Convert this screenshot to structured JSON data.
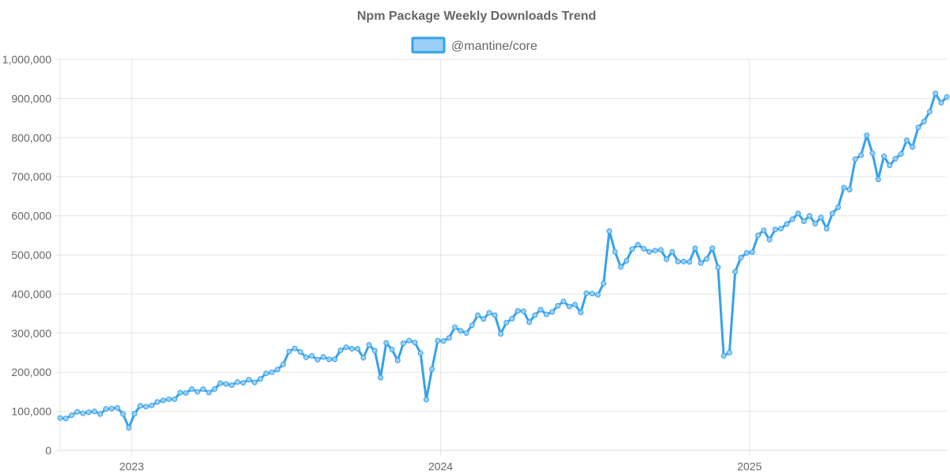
{
  "chart_data": {
    "type": "line",
    "title": "Npm Package Weekly Downloads Trend",
    "xlabel": "",
    "ylabel": "",
    "x_tick_labels": [
      "2023",
      "2024",
      "2025"
    ],
    "x_tick_weeks": [
      12.5,
      66.5,
      120.5
    ],
    "ylim": [
      0,
      1000000
    ],
    "y_ticks": [
      0,
      100000,
      200000,
      300000,
      400000,
      500000,
      600000,
      700000,
      800000,
      900000,
      1000000
    ],
    "y_tick_labels": [
      "0",
      "100,000",
      "200,000",
      "300,000",
      "400,000",
      "500,000",
      "600,000",
      "700,000",
      "800,000",
      "900,000",
      "1,000,000"
    ],
    "grid": true,
    "legend": "top-center",
    "series": [
      {
        "name": "@mantine/core",
        "color": "#36a2eb",
        "fill_color": "#9ad0f5",
        "values": [
          83000,
          82000,
          90000,
          99000,
          95000,
          98000,
          100000,
          93000,
          106000,
          107000,
          109000,
          93000,
          58000,
          94000,
          114000,
          112000,
          115000,
          124000,
          128000,
          131000,
          131000,
          148000,
          147000,
          157000,
          150000,
          157000,
          148000,
          157000,
          172000,
          170000,
          167000,
          175000,
          173000,
          181000,
          174000,
          183000,
          197000,
          200000,
          207000,
          220000,
          253000,
          261000,
          252000,
          238000,
          242000,
          232000,
          239000,
          233000,
          233000,
          256000,
          264000,
          260000,
          260000,
          237000,
          270000,
          255000,
          186000,
          275000,
          258000,
          230000,
          274000,
          281000,
          276000,
          249000,
          130000,
          208000,
          281000,
          280000,
          288000,
          315000,
          306000,
          300000,
          320000,
          346000,
          336000,
          352000,
          346000,
          298000,
          327000,
          337000,
          357000,
          356000,
          328000,
          346000,
          360000,
          348000,
          354000,
          370000,
          381000,
          368000,
          373000,
          353000,
          402000,
          401000,
          398000,
          427000,
          561000,
          508000,
          469000,
          485000,
          515000,
          526000,
          516000,
          508000,
          511000,
          513000,
          489000,
          508000,
          483000,
          483000,
          482000,
          517000,
          479000,
          490000,
          517000,
          468000,
          242000,
          250000,
          457000,
          493000,
          505000,
          507000,
          550000,
          563000,
          539000,
          565000,
          567000,
          579000,
          591000,
          606000,
          586000,
          600000,
          580000,
          596000,
          567000,
          606000,
          622000,
          672000,
          667000,
          745000,
          755000,
          806000,
          760000,
          693000,
          752000,
          729000,
          746000,
          758000,
          793000,
          776000,
          826000,
          841000,
          866000,
          913000,
          889000,
          904000
        ]
      }
    ]
  }
}
